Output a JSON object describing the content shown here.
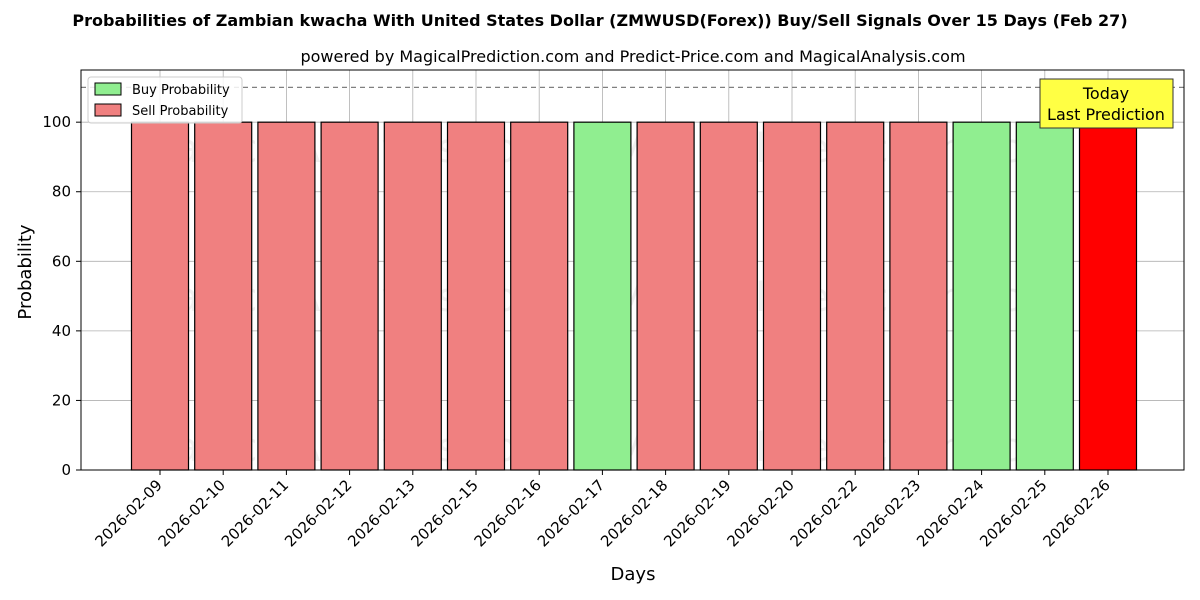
{
  "chart_data": {
    "type": "bar",
    "title": "Probabilities of Zambian kwacha With United States Dollar (ZMWUSD(Forex)) Buy/Sell Signals Over 15 Days (Feb 27)",
    "subtitle": "powered by MagicalPrediction.com and Predict-Price.com and MagicalAnalysis.com",
    "xlabel": "Days",
    "ylabel": "Probability",
    "ylim": [
      0,
      115
    ],
    "yticks": [
      0,
      20,
      40,
      60,
      80,
      100
    ],
    "reference_line": 110,
    "grid": true,
    "legend_position": "top-left",
    "categories": [
      "2026-02-09",
      "2026-02-10",
      "2026-02-11",
      "2026-02-12",
      "2026-02-13",
      "2026-02-15",
      "2026-02-16",
      "2026-02-17",
      "2026-02-18",
      "2026-02-19",
      "2026-02-20",
      "2026-02-22",
      "2026-02-23",
      "2026-02-24",
      "2026-02-25",
      "2026-02-26"
    ],
    "values": [
      100,
      100,
      100,
      100,
      100,
      100,
      100,
      100,
      100,
      100,
      100,
      100,
      100,
      100,
      100,
      100
    ],
    "signals": [
      "sell",
      "sell",
      "sell",
      "sell",
      "sell",
      "sell",
      "sell",
      "buy",
      "sell",
      "sell",
      "sell",
      "sell",
      "sell",
      "buy",
      "buy",
      "sell"
    ],
    "highlight_last": true,
    "series": [
      {
        "name": "Buy Probability",
        "color": "#90ee90"
      },
      {
        "name": "Sell Probability",
        "color": "#f08080"
      }
    ],
    "highlight_color": "#ff0000",
    "annotation": {
      "line1": "Today",
      "line2": "Last Prediction",
      "color": "#ffff44"
    },
    "watermarks": [
      "MagicalAnalysis.com",
      "MagicalPrediction.com"
    ]
  }
}
